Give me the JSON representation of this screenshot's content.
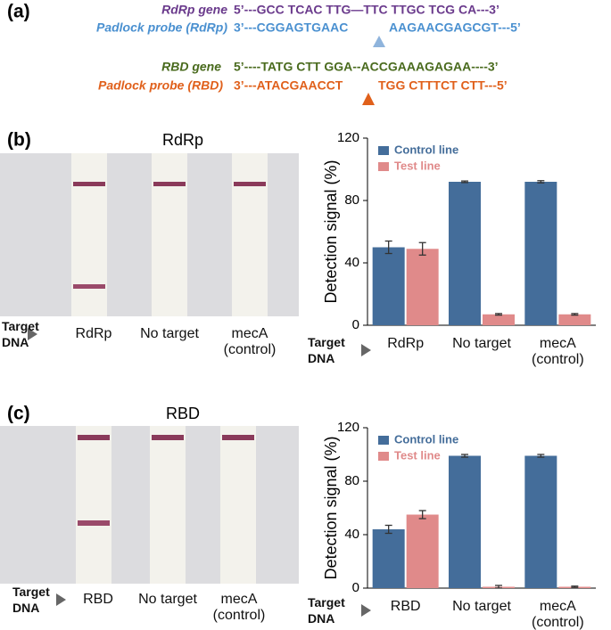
{
  "panel_a": {
    "label": "(a)",
    "rdrp_gene": {
      "name": "RdRp gene",
      "sequence": "5’---GCC TCAC TTG—TTC TTGC TCG CA---3’"
    },
    "rdrp_probe": {
      "name": "Padlock probe (RdRp)",
      "left": "3’---CGGAGTGAAC",
      "right": "AAGAACGAGCGT---5’"
    },
    "rbd_gene": {
      "name": "RBD gene",
      "sequence": "5’----TATG CTT GGA--ACCGAAAGAGAA----3’"
    },
    "rbd_probe": {
      "name": "Padlock probe (RBD)",
      "left": "3’---ATACGAACCT",
      "right": "TGG CTTTCT CTT---5’"
    }
  },
  "panel_b": {
    "label": "(b)",
    "photo_title": "RdRp",
    "target_label": "Target DNA",
    "lanes": [
      "RdRp",
      "No target",
      "mecA (control)"
    ]
  },
  "panel_c": {
    "label": "(c)",
    "photo_title": "RBD",
    "target_label": "Target DNA",
    "lanes": [
      "RBD",
      "No target",
      "mecA (control)"
    ]
  },
  "chart_data": [
    {
      "type": "bar",
      "ylabel": "Detection signal (%)",
      "target_label": "Target DNA",
      "categories": [
        "RdRp",
        "No target",
        "mecA (control)"
      ],
      "ylim": [
        0,
        120
      ],
      "yticks": [
        0,
        40,
        80,
        120
      ],
      "series": [
        {
          "name": "Control line",
          "color": "#446d9a",
          "values": [
            50,
            92,
            92
          ],
          "errors": [
            4,
            0.5,
            0.7
          ]
        },
        {
          "name": "Test line",
          "color": "#e08a8a",
          "values": [
            49,
            7,
            7
          ],
          "errors": [
            4,
            0.5,
            0.5
          ]
        }
      ]
    },
    {
      "type": "bar",
      "ylabel": "Detection signal (%)",
      "target_label": "Target DNA",
      "categories": [
        "RBD",
        "No target",
        "mecA (control)"
      ],
      "ylim": [
        0,
        120
      ],
      "yticks": [
        0,
        40,
        80,
        120
      ],
      "series": [
        {
          "name": "Control line",
          "color": "#446d9a",
          "values": [
            44,
            99,
            99
          ],
          "errors": [
            3,
            1,
            1
          ]
        },
        {
          "name": "Test line",
          "color": "#e08a8a",
          "values": [
            55,
            1,
            1
          ],
          "errors": [
            3,
            1,
            0.5
          ]
        }
      ]
    }
  ]
}
